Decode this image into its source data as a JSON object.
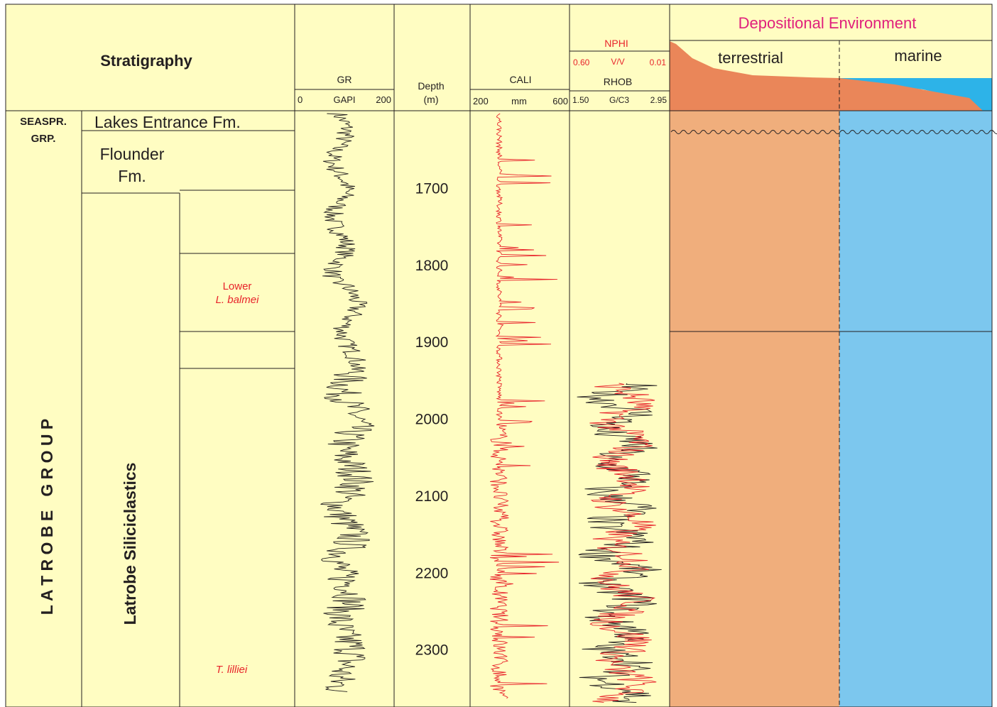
{
  "colors": {
    "background": "#fffdc2",
    "grid_line": "#231f20",
    "terrestrial": "#f0ae7c",
    "terrestrial_profile": "#ea8659",
    "marine": "#7cc7ee",
    "marine_profile": "#2db3e8",
    "accent_red": "#e8242b",
    "title_magenta": "#e0207c",
    "gr_curve": "#231f20",
    "cali_curve": "#e8242b",
    "rhob_curve": "#231f20",
    "nphi_curve": "#e8242b"
  },
  "header": {
    "stratigraphy": "Stratigraphy",
    "gr": {
      "name": "GR",
      "unit": "GAPI",
      "min": "0",
      "max": "200"
    },
    "depth": {
      "name": "Depth",
      "unit": "(m)"
    },
    "cali": {
      "name": "CALI",
      "unit": "mm",
      "min": "200",
      "max": "600"
    },
    "nphi": {
      "name": "NPHI",
      "unit": "V/V",
      "min": "0.60",
      "max": "0.01"
    },
    "rhob": {
      "name": "RHOB",
      "unit": "G/C3",
      "min": "1.50",
      "max": "2.95"
    },
    "environment": {
      "title": "Depositional Environment",
      "terrestrial": "terrestrial",
      "marine": "marine"
    }
  },
  "stratigraphy": {
    "group_upper": "SEASPR.",
    "group_upper_2": "GRP.",
    "lakes_entrance": "Lakes Entrance Fm.",
    "flounder_1": "Flounder",
    "flounder_2": "Fm.",
    "latrobe_group": "L A T R O B E   G R O U P",
    "latrobe_siliciclastics": "Latrobe Siliciclastics",
    "zone_lower_1": "Lower",
    "zone_lower_2": "L. balmei",
    "zone_tlilliei": "T. lilliei"
  },
  "depth_ticks": [
    "1700",
    "1800",
    "1900",
    "2000",
    "2100",
    "2200",
    "2300"
  ],
  "depth_range_m": [
    1600,
    2375
  ]
}
